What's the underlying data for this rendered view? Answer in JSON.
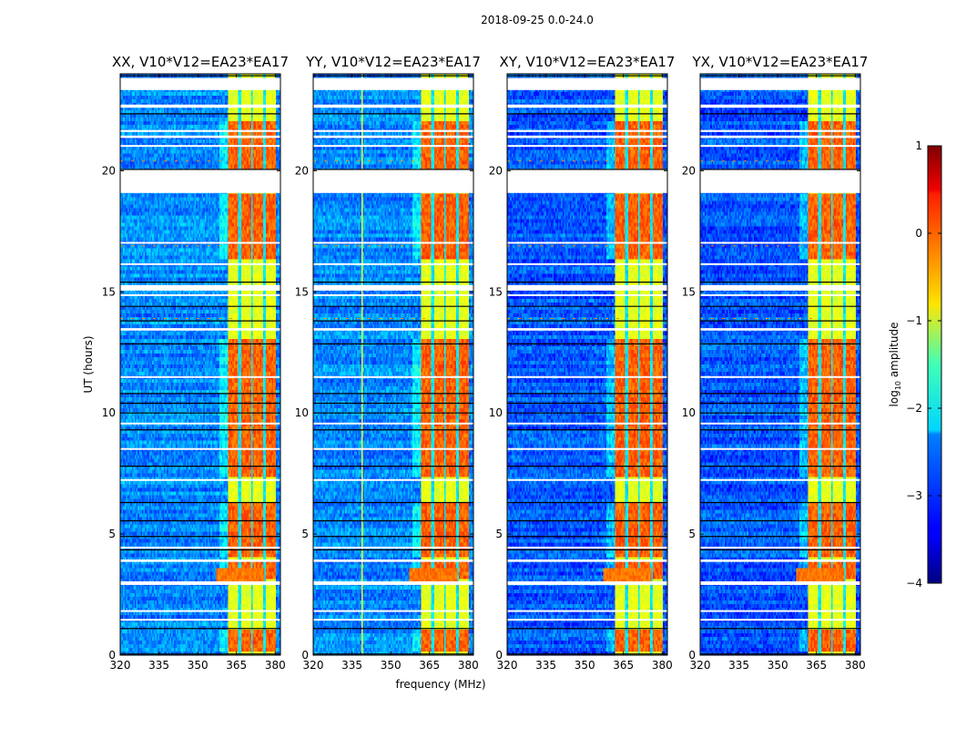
{
  "chart_data": {
    "type": "heatmap",
    "suptitle": "2018-09-25 0.0-24.0",
    "colormap": "jet",
    "xlabel": "frequency (MHz)",
    "ylabel": "UT (hours)",
    "xlim": [
      320,
      382
    ],
    "ylim": [
      0,
      24
    ],
    "xticks": [
      320,
      335,
      350,
      365,
      380
    ],
    "yticks": [
      0,
      5,
      10,
      15,
      20
    ],
    "panels": [
      {
        "title": "XX, V10*V12=EA23*EA17",
        "polarization": "XX",
        "rfi_channel_mhz": null
      },
      {
        "title": "YY, V10*V12=EA23*EA17",
        "polarization": "YY",
        "rfi_channel_mhz": 339
      },
      {
        "title": "XY, V10*V12=EA23*EA17",
        "polarization": "XY",
        "rfi_channel_mhz": null
      },
      {
        "title": "YX, V10*V12=EA23*EA17",
        "polarization": "YX",
        "rfi_channel_mhz": null
      }
    ],
    "colorbar": {
      "label_prefix": "log",
      "label_sub": "10",
      "label_suffix": " amplitude",
      "range": [
        -4,
        1
      ],
      "ticks": [
        -4,
        -3,
        -2,
        -1,
        0,
        1
      ],
      "tick_labels": [
        "−4",
        "−3",
        "−2",
        "−1",
        "0",
        "1"
      ]
    },
    "signal": {
      "band_mhz": [
        361.5,
        380.5
      ],
      "subband_edges_mhz": [
        361.5,
        366.2,
        370.9,
        375.7,
        380.5
      ],
      "background_log_amp": -2.8,
      "band_log_amp": -1.0,
      "bright_log_amp": -0.1
    },
    "flagged_ut_ranges": [
      [
        23.33,
        23.83
      ],
      [
        22.6,
        22.73
      ],
      [
        21.6,
        21.68
      ],
      [
        21.35,
        21.45
      ],
      [
        21.0,
        21.06
      ],
      [
        19.08,
        20.03
      ],
      [
        17.0,
        17.06
      ],
      [
        16.1,
        16.18
      ],
      [
        15.05,
        15.28
      ],
      [
        14.85,
        14.9
      ],
      [
        13.4,
        13.5
      ],
      [
        11.45,
        11.52
      ],
      [
        9.55,
        9.6
      ],
      [
        8.5,
        8.55
      ],
      [
        7.2,
        7.27
      ],
      [
        4.4,
        4.48
      ],
      [
        3.85,
        3.95
      ],
      [
        2.9,
        3.05
      ],
      [
        1.8,
        1.86
      ],
      [
        1.45,
        1.5
      ]
    ],
    "dark_ut_lines": [
      23.92,
      22.35,
      20.05,
      19.75,
      19.47,
      15.4,
      14.4,
      13.8,
      12.85,
      10.8,
      10.4,
      10.0,
      9.3,
      7.8,
      6.3,
      5.55,
      4.9,
      4.35,
      1.1,
      0.05
    ],
    "high_amp_ut_ranges": [
      [
        19.5,
        22.0
      ],
      [
        16.3,
        19.0
      ],
      [
        11.0,
        13.0
      ],
      [
        9.0,
        10.9
      ],
      [
        7.3,
        9.0
      ],
      [
        4.0,
        6.3
      ],
      [
        3.1,
        3.85
      ],
      [
        0.1,
        1.0
      ]
    ],
    "wideband_event_ut": [
      3.05,
      3.55
    ],
    "bright_rfi_ut_lines": [
      20.4,
      16.9,
      13.9,
      10.0
    ]
  }
}
